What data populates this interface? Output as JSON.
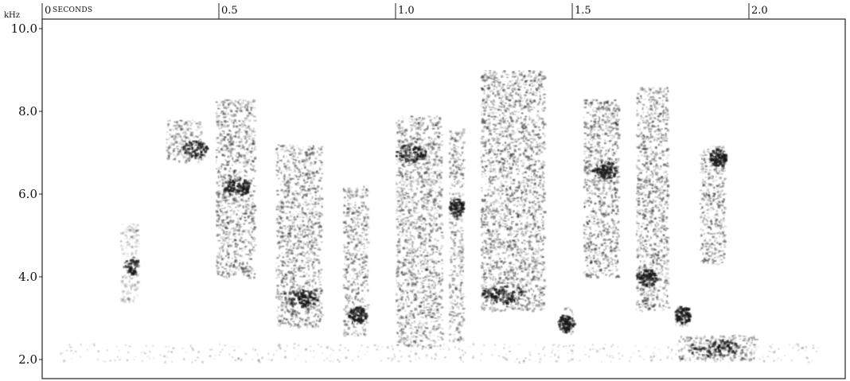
{
  "chart_data": {
    "type": "spectrogram",
    "ylabel": "kHz",
    "xunit": "SECONDS",
    "xlim": [
      0,
      2.25
    ],
    "ylim": [
      1.75,
      10.0
    ],
    "xticks": [
      {
        "value": 0,
        "label": "0"
      },
      {
        "value": 0.5,
        "label": "0.5"
      },
      {
        "value": 1.0,
        "label": "1.0"
      },
      {
        "value": 1.5,
        "label": "1.5"
      },
      {
        "value": 2.0,
        "label": "2.0"
      }
    ],
    "yticks": [
      {
        "value": 2.0,
        "label": "2.0"
      },
      {
        "value": 4.0,
        "label": "4.0"
      },
      {
        "value": 6.0,
        "label": "6.0"
      },
      {
        "value": 8.0,
        "label": "8.0"
      },
      {
        "value": 10.0,
        "label": "10.0"
      }
    ],
    "grid": false,
    "ink_color": "#1a1a1a",
    "syllables": [
      {
        "t_start": 0.22,
        "t_end": 0.27,
        "f_low": 3.4,
        "f_high": 5.3,
        "peak_t": 0.25,
        "peak_f": 4.3,
        "intensity": 0.45
      },
      {
        "t_start": 0.35,
        "t_end": 0.45,
        "f_low": 6.8,
        "f_high": 7.8,
        "peak_t": 0.43,
        "peak_f": 7.1,
        "intensity": 0.85
      },
      {
        "t_start": 0.49,
        "t_end": 0.6,
        "f_low": 4.0,
        "f_high": 8.3,
        "peak_t": 0.55,
        "peak_f": 6.2,
        "intensity": 0.95
      },
      {
        "t_start": 0.66,
        "t_end": 0.79,
        "f_low": 2.8,
        "f_high": 7.2,
        "peak_t": 0.73,
        "peak_f": 3.5,
        "intensity": 0.95
      },
      {
        "t_start": 0.85,
        "t_end": 0.92,
        "f_low": 2.6,
        "f_high": 6.2,
        "peak_t": 0.89,
        "peak_f": 3.1,
        "intensity": 0.85
      },
      {
        "t_start": 1.0,
        "t_end": 1.13,
        "f_low": 2.3,
        "f_high": 7.9,
        "peak_t": 1.04,
        "peak_f": 7.0,
        "intensity": 0.9
      },
      {
        "t_start": 1.15,
        "t_end": 1.19,
        "f_low": 2.4,
        "f_high": 7.6,
        "peak_t": 1.17,
        "peak_f": 5.7,
        "intensity": 0.8
      },
      {
        "t_start": 1.24,
        "t_end": 1.42,
        "f_low": 3.2,
        "f_high": 9.0,
        "peak_t": 1.3,
        "peak_f": 3.6,
        "intensity": 0.95
      },
      {
        "t_start": 1.47,
        "t_end": 1.5,
        "f_low": 2.6,
        "f_high": 3.3,
        "peak_t": 1.48,
        "peak_f": 2.9,
        "intensity": 0.85
      },
      {
        "t_start": 1.53,
        "t_end": 1.63,
        "f_low": 4.0,
        "f_high": 8.3,
        "peak_t": 1.59,
        "peak_f": 6.6,
        "intensity": 0.95
      },
      {
        "t_start": 1.68,
        "t_end": 1.77,
        "f_low": 3.2,
        "f_high": 8.6,
        "peak_t": 1.71,
        "peak_f": 4.0,
        "intensity": 0.95
      },
      {
        "t_start": 1.79,
        "t_end": 1.83,
        "f_low": 2.8,
        "f_high": 3.3,
        "peak_t": 1.81,
        "peak_f": 3.1,
        "intensity": 0.85
      },
      {
        "t_start": 1.8,
        "t_end": 2.02,
        "f_low": 2.0,
        "f_high": 2.6,
        "peak_t": 1.9,
        "peak_f": 2.3,
        "intensity": 0.8
      },
      {
        "t_start": 1.86,
        "t_end": 1.93,
        "f_low": 4.3,
        "f_high": 7.2,
        "peak_t": 1.91,
        "peak_f": 6.9,
        "intensity": 0.95
      }
    ]
  }
}
